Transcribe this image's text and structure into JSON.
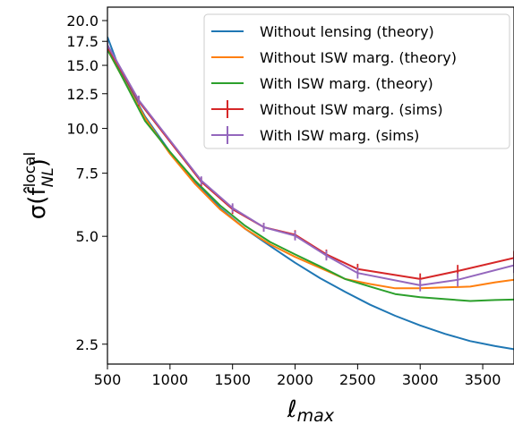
{
  "chart_data": {
    "type": "line",
    "xlabel": "ℓ",
    "xlabel_sub": "max",
    "ylabel": "σ(f̂",
    "ylabel_sup": "local",
    "ylabel_sub": "NL",
    "ylabel_close": ")",
    "xlim": [
      500,
      3750
    ],
    "ylim": [
      2.2,
      21.8
    ],
    "yscale": "log",
    "x_ticks": [
      500,
      1000,
      1500,
      2000,
      2500,
      3000,
      3500
    ],
    "x_tick_labels": [
      "500",
      "1000",
      "1500",
      "2000",
      "2500",
      "3000",
      "3500"
    ],
    "y_ticks": [
      2.5,
      5.0,
      7.5,
      10.0,
      12.5,
      15.0,
      17.5,
      20.0
    ],
    "y_tick_labels": [
      "2.5",
      "5.0",
      "7.5",
      "10.0",
      "12.5",
      "15.0",
      "17.5",
      "20.0"
    ],
    "grid": false,
    "legend_position": "top-right",
    "series": [
      {
        "name": "Without lensing (theory)",
        "color": "#1f77b4",
        "style": "line",
        "x": [
          500,
          600,
          800,
          1000,
          1200,
          1400,
          1600,
          1800,
          2000,
          2200,
          2400,
          2600,
          2800,
          3000,
          3200,
          3400,
          3600,
          3750
        ],
        "y": [
          18.0,
          14.5,
          10.8,
          8.6,
          7.1,
          6.0,
          5.25,
          4.7,
          4.22,
          3.82,
          3.5,
          3.22,
          3.0,
          2.82,
          2.67,
          2.55,
          2.47,
          2.42
        ]
      },
      {
        "name": "Without ISW marg. (theory)",
        "color": "#ff7f0e",
        "style": "line",
        "x": [
          500,
          600,
          800,
          1000,
          1200,
          1400,
          1600,
          1800,
          2000,
          2200,
          2400,
          2600,
          2800,
          3000,
          3200,
          3400,
          3600,
          3750
        ],
        "y": [
          16.6,
          14.3,
          10.7,
          8.5,
          7.0,
          5.95,
          5.25,
          4.75,
          4.38,
          4.08,
          3.8,
          3.68,
          3.58,
          3.58,
          3.6,
          3.62,
          3.72,
          3.78
        ]
      },
      {
        "name": "With ISW marg. (theory)",
        "color": "#2ca02c",
        "style": "line",
        "x": [
          500,
          600,
          800,
          1000,
          1200,
          1400,
          1600,
          1800,
          2000,
          2200,
          2400,
          2600,
          2800,
          3000,
          3200,
          3400,
          3600,
          3750
        ],
        "y": [
          16.6,
          14.3,
          10.5,
          8.6,
          7.15,
          6.1,
          5.35,
          4.82,
          4.45,
          4.12,
          3.8,
          3.62,
          3.45,
          3.38,
          3.34,
          3.3,
          3.32,
          3.33
        ]
      },
      {
        "name": "Without ISW marg. (sims)",
        "color": "#d62728",
        "style": "errorbar",
        "x": [
          500,
          750,
          1250,
          1500,
          1750,
          2000,
          2250,
          2500,
          3000,
          3300,
          3750
        ],
        "y": [
          16.9,
          11.9,
          7.1,
          5.95,
          5.3,
          5.05,
          4.45,
          4.05,
          3.8,
          4.0,
          4.35
        ],
        "err": [
          0.45,
          0.35,
          0.2,
          0.18,
          0.15,
          0.15,
          0.14,
          0.14,
          0.14,
          0.16,
          0.2
        ]
      },
      {
        "name": "With ISW marg. (sims)",
        "color": "#9467bd",
        "style": "errorbar",
        "x": [
          500,
          750,
          1250,
          1500,
          1750,
          2000,
          2250,
          2500,
          3000,
          3300,
          3750
        ],
        "y": [
          17.1,
          12.0,
          7.15,
          6.0,
          5.3,
          5.02,
          4.42,
          3.95,
          3.65,
          3.78,
          4.15
        ],
        "err": [
          0.45,
          0.35,
          0.2,
          0.18,
          0.15,
          0.15,
          0.14,
          0.14,
          0.14,
          0.16,
          0.2
        ]
      }
    ]
  }
}
